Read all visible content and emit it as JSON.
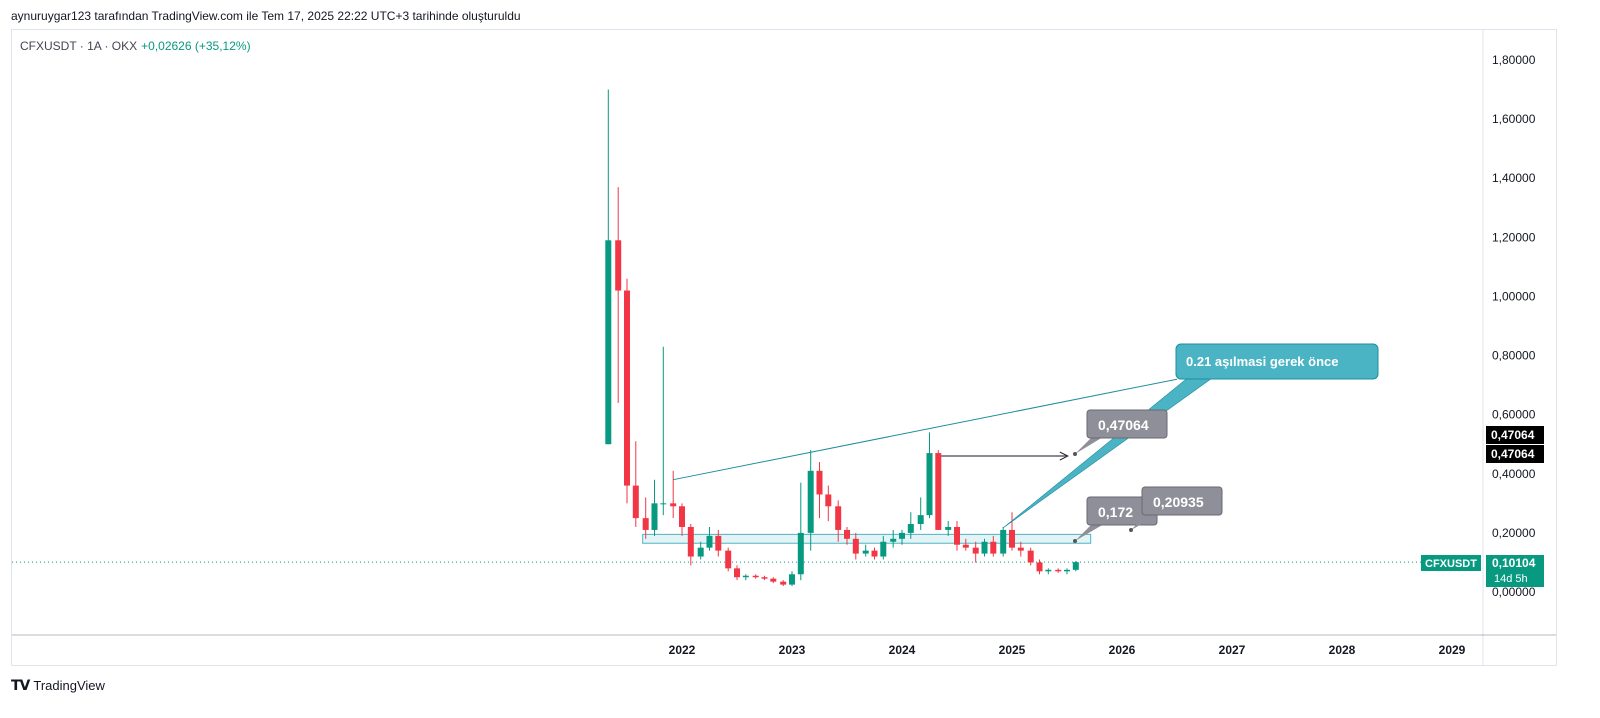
{
  "header": {
    "created_by": "aynuruygar123 tarafından TradingView.com ile Tem 17, 2025 22:22 UTC+3 tarihinde oluşturuldu"
  },
  "symbol": {
    "name": "CFXUSDT · 1A · OKX",
    "change": "+0,02626 (+35,12%)"
  },
  "footer": {
    "brand": "TradingView"
  },
  "colors": {
    "up": "#089981",
    "down": "#f23645",
    "accent": "#4bb4c4",
    "label_gray": "#8f8f99"
  },
  "chart_data": {
    "type": "candlestick",
    "y_scale": "linear",
    "ylim": [
      -0.15,
      1.9
    ],
    "y_ticks": [
      "1,80000",
      "1,60000",
      "1,40000",
      "1,20000",
      "1,00000",
      "0,80000",
      "0,60000",
      "0,40000",
      "0,20000",
      "0,00000"
    ],
    "x_ticks": [
      "2022",
      "2023",
      "2024",
      "2025",
      "2026",
      "2027",
      "2028",
      "2029"
    ],
    "grid": false,
    "last_price": "0,10104",
    "last_price_countdown": "14d 5h",
    "last_price_label": "CFXUSDT",
    "price_labels": [
      "0,47064",
      "0,47064"
    ],
    "candles": [
      {
        "t": 2021.33,
        "o": 0.5,
        "h": 1.7,
        "l": 0.5,
        "c": 1.19
      },
      {
        "t": 2021.42,
        "o": 1.19,
        "h": 1.37,
        "l": 0.64,
        "c": 1.02
      },
      {
        "t": 2021.5,
        "o": 1.02,
        "h": 1.06,
        "l": 0.3,
        "c": 0.36
      },
      {
        "t": 2021.58,
        "o": 0.36,
        "h": 0.51,
        "l": 0.22,
        "c": 0.25
      },
      {
        "t": 2021.67,
        "o": 0.25,
        "h": 0.32,
        "l": 0.18,
        "c": 0.21
      },
      {
        "t": 2021.75,
        "o": 0.21,
        "h": 0.38,
        "l": 0.19,
        "c": 0.3
      },
      {
        "t": 2021.83,
        "o": 0.3,
        "h": 0.83,
        "l": 0.26,
        "c": 0.3
      },
      {
        "t": 2021.92,
        "o": 0.3,
        "h": 0.41,
        "l": 0.25,
        "c": 0.29
      },
      {
        "t": 2022.0,
        "o": 0.29,
        "h": 0.3,
        "l": 0.19,
        "c": 0.22
      },
      {
        "t": 2022.08,
        "o": 0.22,
        "h": 0.23,
        "l": 0.09,
        "c": 0.12
      },
      {
        "t": 2022.17,
        "o": 0.12,
        "h": 0.17,
        "l": 0.11,
        "c": 0.15
      },
      {
        "t": 2022.25,
        "o": 0.15,
        "h": 0.22,
        "l": 0.14,
        "c": 0.19
      },
      {
        "t": 2022.33,
        "o": 0.19,
        "h": 0.21,
        "l": 0.12,
        "c": 0.14
      },
      {
        "t": 2022.42,
        "o": 0.14,
        "h": 0.15,
        "l": 0.07,
        "c": 0.08
      },
      {
        "t": 2022.5,
        "o": 0.08,
        "h": 0.09,
        "l": 0.04,
        "c": 0.05
      },
      {
        "t": 2022.58,
        "o": 0.05,
        "h": 0.06,
        "l": 0.04,
        "c": 0.055
      },
      {
        "t": 2022.67,
        "o": 0.055,
        "h": 0.06,
        "l": 0.045,
        "c": 0.05
      },
      {
        "t": 2022.75,
        "o": 0.05,
        "h": 0.055,
        "l": 0.04,
        "c": 0.045
      },
      {
        "t": 2022.83,
        "o": 0.045,
        "h": 0.05,
        "l": 0.03,
        "c": 0.035
      },
      {
        "t": 2022.92,
        "o": 0.035,
        "h": 0.04,
        "l": 0.02,
        "c": 0.025
      },
      {
        "t": 2023.0,
        "o": 0.025,
        "h": 0.07,
        "l": 0.02,
        "c": 0.06
      },
      {
        "t": 2023.08,
        "o": 0.06,
        "h": 0.37,
        "l": 0.04,
        "c": 0.2
      },
      {
        "t": 2023.17,
        "o": 0.2,
        "h": 0.48,
        "l": 0.14,
        "c": 0.41
      },
      {
        "t": 2023.25,
        "o": 0.41,
        "h": 0.44,
        "l": 0.25,
        "c": 0.33
      },
      {
        "t": 2023.33,
        "o": 0.33,
        "h": 0.36,
        "l": 0.24,
        "c": 0.29
      },
      {
        "t": 2023.42,
        "o": 0.29,
        "h": 0.31,
        "l": 0.17,
        "c": 0.21
      },
      {
        "t": 2023.5,
        "o": 0.21,
        "h": 0.22,
        "l": 0.16,
        "c": 0.18
      },
      {
        "t": 2023.58,
        "o": 0.18,
        "h": 0.2,
        "l": 0.11,
        "c": 0.13
      },
      {
        "t": 2023.67,
        "o": 0.13,
        "h": 0.16,
        "l": 0.12,
        "c": 0.14
      },
      {
        "t": 2023.75,
        "o": 0.14,
        "h": 0.15,
        "l": 0.11,
        "c": 0.12
      },
      {
        "t": 2023.83,
        "o": 0.12,
        "h": 0.19,
        "l": 0.11,
        "c": 0.17
      },
      {
        "t": 2023.92,
        "o": 0.17,
        "h": 0.21,
        "l": 0.15,
        "c": 0.18
      },
      {
        "t": 2024.0,
        "o": 0.18,
        "h": 0.21,
        "l": 0.16,
        "c": 0.2
      },
      {
        "t": 2024.08,
        "o": 0.2,
        "h": 0.27,
        "l": 0.18,
        "c": 0.23
      },
      {
        "t": 2024.17,
        "o": 0.23,
        "h": 0.32,
        "l": 0.21,
        "c": 0.26
      },
      {
        "t": 2024.25,
        "o": 0.26,
        "h": 0.54,
        "l": 0.25,
        "c": 0.47
      },
      {
        "t": 2024.33,
        "o": 0.47,
        "h": 0.48,
        "l": 0.21,
        "c": 0.21
      },
      {
        "t": 2024.42,
        "o": 0.21,
        "h": 0.24,
        "l": 0.19,
        "c": 0.22
      },
      {
        "t": 2024.5,
        "o": 0.22,
        "h": 0.24,
        "l": 0.14,
        "c": 0.16
      },
      {
        "t": 2024.58,
        "o": 0.16,
        "h": 0.18,
        "l": 0.14,
        "c": 0.15
      },
      {
        "t": 2024.67,
        "o": 0.15,
        "h": 0.17,
        "l": 0.1,
        "c": 0.13
      },
      {
        "t": 2024.75,
        "o": 0.13,
        "h": 0.18,
        "l": 0.12,
        "c": 0.17
      },
      {
        "t": 2024.83,
        "o": 0.17,
        "h": 0.19,
        "l": 0.12,
        "c": 0.13
      },
      {
        "t": 2024.92,
        "o": 0.13,
        "h": 0.22,
        "l": 0.12,
        "c": 0.21
      },
      {
        "t": 2025.0,
        "o": 0.21,
        "h": 0.27,
        "l": 0.14,
        "c": 0.15
      },
      {
        "t": 2025.08,
        "o": 0.15,
        "h": 0.17,
        "l": 0.12,
        "c": 0.14
      },
      {
        "t": 2025.17,
        "o": 0.14,
        "h": 0.15,
        "l": 0.09,
        "c": 0.1
      },
      {
        "t": 2025.25,
        "o": 0.1,
        "h": 0.11,
        "l": 0.06,
        "c": 0.07
      },
      {
        "t": 2025.33,
        "o": 0.07,
        "h": 0.08,
        "l": 0.06,
        "c": 0.075
      },
      {
        "t": 2025.42,
        "o": 0.075,
        "h": 0.08,
        "l": 0.065,
        "c": 0.07
      },
      {
        "t": 2025.5,
        "o": 0.07,
        "h": 0.08,
        "l": 0.06,
        "c": 0.075
      },
      {
        "t": 2025.58,
        "o": 0.075,
        "h": 0.105,
        "l": 0.07,
        "c": 0.101
      }
    ],
    "annotations": {
      "callout_text": "0.21 aşılmasi gerek önce",
      "price_note_1": "0,47064",
      "price_note_2": "0,172",
      "price_note_3": "0,20935",
      "zone": {
        "from": 0.165,
        "to": 0.195,
        "t_start": 2021.67,
        "t_end": 2025.67
      },
      "trendline": {
        "t1": 2021.92,
        "p1": 0.38,
        "t2": 2026.5,
        "p2": 0.72
      },
      "arrow": {
        "t1": 2024.33,
        "p1": 0.46,
        "t2": 2025.58,
        "p2": 0.46
      }
    }
  }
}
